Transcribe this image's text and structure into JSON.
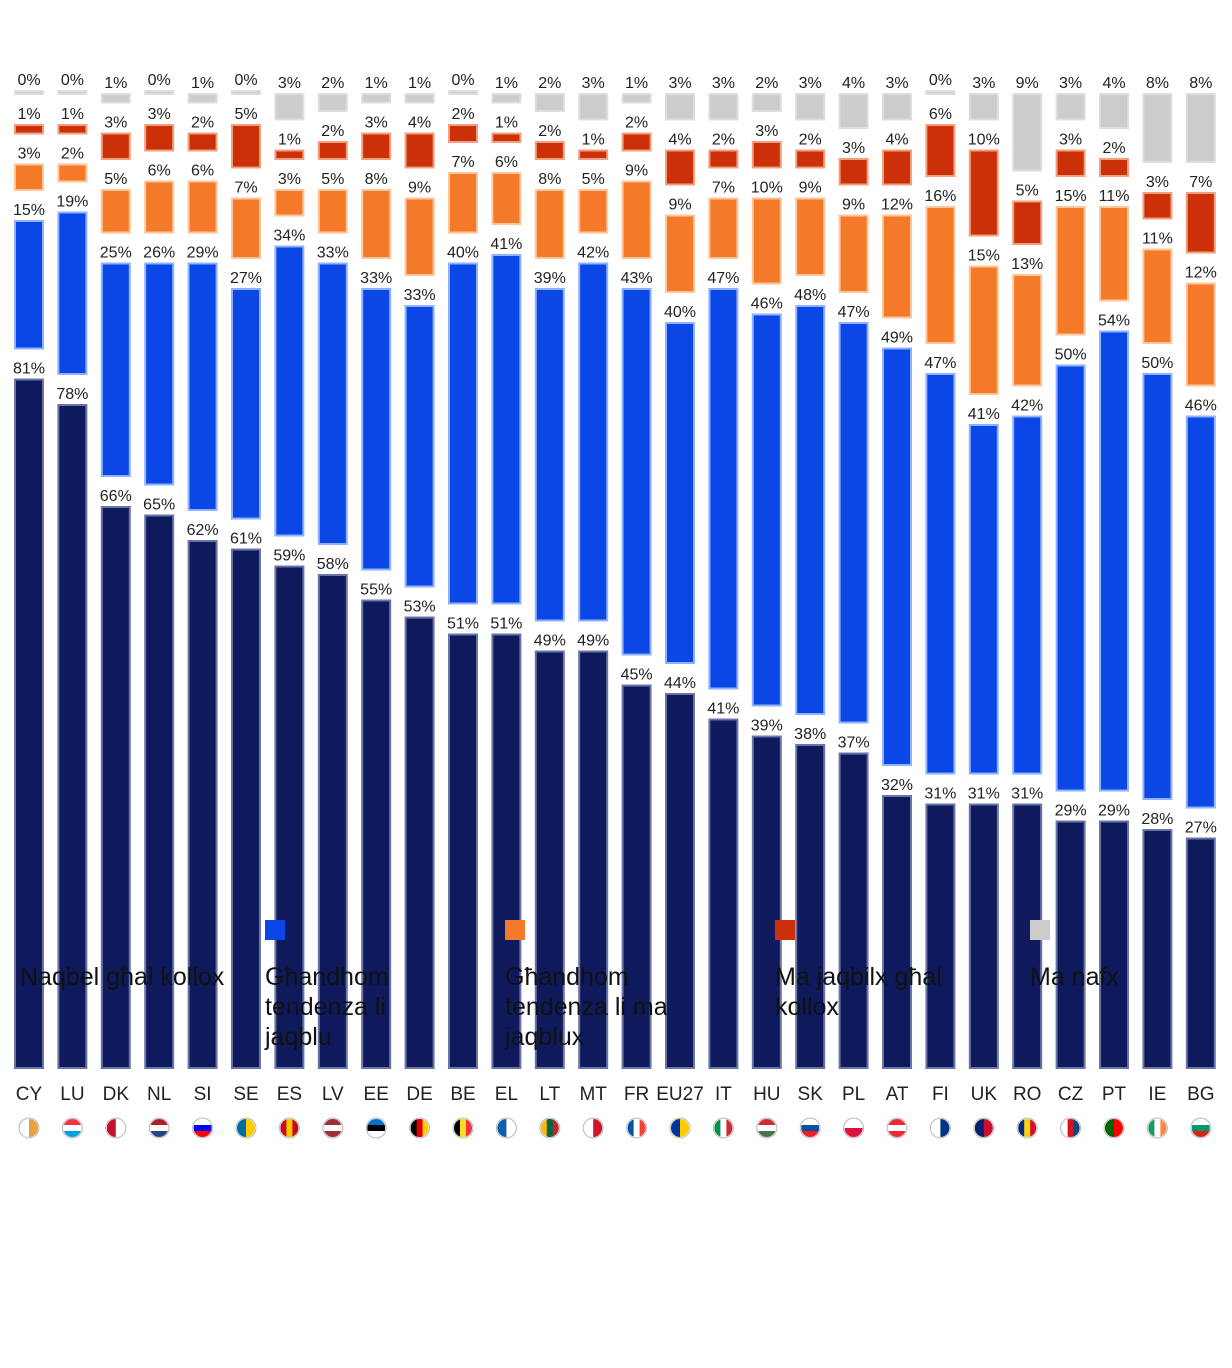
{
  "chart_data": {
    "type": "bar",
    "stacked": true,
    "title": "",
    "xlabel": "",
    "ylabel": "",
    "ylim": [
      0,
      100
    ],
    "categories": [
      "CY",
      "LU",
      "DK",
      "NL",
      "SI",
      "SE",
      "ES",
      "LV",
      "EE",
      "DE",
      "BE",
      "EL",
      "LT",
      "MT",
      "FR",
      "EU27",
      "IT",
      "HU",
      "SK",
      "PL",
      "AT",
      "FI",
      "UK",
      "RO",
      "CZ",
      "PT",
      "IE",
      "BG"
    ],
    "series": [
      {
        "name": "Naqbel għal kollox",
        "color": "#0f1a5c",
        "values": [
          81,
          78,
          66,
          65,
          62,
          61,
          59,
          58,
          55,
          53,
          51,
          51,
          49,
          49,
          45,
          44,
          41,
          39,
          38,
          37,
          32,
          31,
          31,
          31,
          29,
          29,
          28,
          27
        ]
      },
      {
        "name": "Għandhom tendenza li jaqblu",
        "color": "#0a47e6",
        "values": [
          15,
          19,
          25,
          26,
          29,
          27,
          34,
          33,
          33,
          33,
          40,
          41,
          39,
          42,
          43,
          40,
          47,
          46,
          48,
          47,
          49,
          47,
          41,
          42,
          50,
          54,
          50,
          46
        ]
      },
      {
        "name": "Għandhom tendenza li ma jaqblux",
        "color": "#f47a2a",
        "values": [
          3,
          2,
          5,
          6,
          6,
          7,
          3,
          5,
          8,
          9,
          7,
          6,
          8,
          5,
          9,
          9,
          7,
          10,
          9,
          9,
          12,
          16,
          15,
          13,
          15,
          11,
          11,
          12
        ]
      },
      {
        "name": "Ma jaqbilx għal kollox",
        "color": "#cc3008",
        "values": [
          1,
          1,
          3,
          3,
          2,
          5,
          1,
          2,
          3,
          4,
          2,
          1,
          2,
          1,
          2,
          4,
          2,
          3,
          2,
          3,
          4,
          6,
          10,
          5,
          3,
          2,
          3,
          7
        ]
      },
      {
        "name": "Ma nafx",
        "color": "#cccccc",
        "values": [
          0,
          0,
          1,
          0,
          1,
          0,
          3,
          2,
          1,
          1,
          0,
          1,
          2,
          3,
          1,
          3,
          3,
          2,
          3,
          4,
          3,
          0,
          3,
          9,
          3,
          4,
          8,
          8
        ]
      }
    ],
    "legend_position": "bottom",
    "grid": false,
    "flag_icons": [
      "cy-flag-icon",
      "lu-flag-icon",
      "dk-flag-icon",
      "nl-flag-icon",
      "si-flag-icon",
      "se-flag-icon",
      "es-flag-icon",
      "lv-flag-icon",
      "ee-flag-icon",
      "de-flag-icon",
      "be-flag-icon",
      "el-flag-icon",
      "lt-flag-icon",
      "mt-flag-icon",
      "fr-flag-icon",
      "eu27-flag-icon",
      "it-flag-icon",
      "hu-flag-icon",
      "sk-flag-icon",
      "pl-flag-icon",
      "at-flag-icon",
      "fi-flag-icon",
      "uk-flag-icon",
      "ro-flag-icon",
      "cz-flag-icon",
      "pt-flag-icon",
      "ie-flag-icon",
      "bg-flag-icon"
    ]
  }
}
